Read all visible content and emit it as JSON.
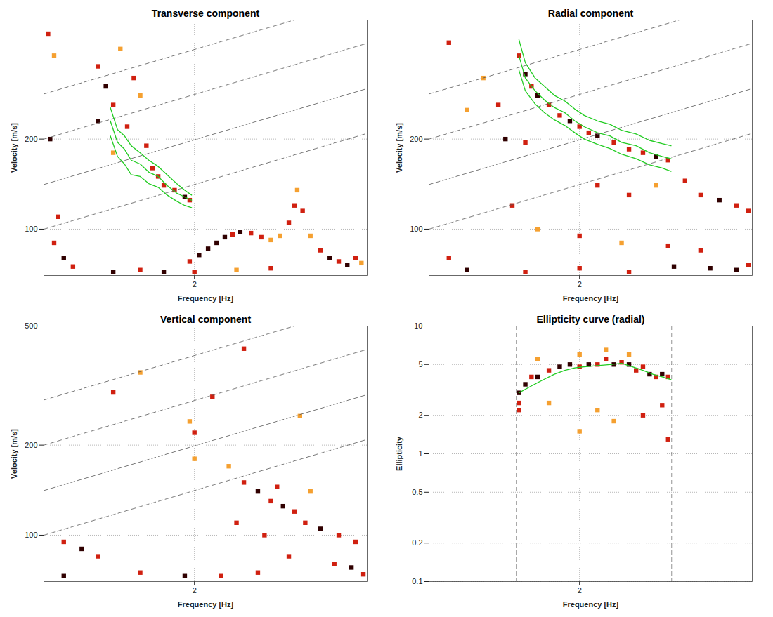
{
  "chart_data": [
    {
      "type": "heatmap",
      "title": "Transverse component",
      "x_label": "Frequency [Hz]",
      "y_label": "Velocity [m/s]",
      "log": true,
      "grid": true,
      "xlim": [
        0.9,
        5
      ],
      "ylim": [
        70,
        500
      ],
      "xticks": [
        2
      ],
      "yticks": [
        100,
        200
      ],
      "cell_levels": [
        1,
        2,
        3,
        4
      ],
      "cell_colors": [
        "#ffe680",
        "#f5a030",
        "#d02010",
        "#300000"
      ],
      "cells": [
        [
          1.95,
          78,
          3
        ],
        [
          2.05,
          82,
          4
        ],
        [
          2.15,
          86,
          4
        ],
        [
          2.25,
          90,
          4
        ],
        [
          2.35,
          94,
          4
        ],
        [
          2.45,
          96,
          3
        ],
        [
          2.55,
          98,
          4
        ],
        [
          2.7,
          97,
          3
        ],
        [
          2.85,
          94,
          3
        ],
        [
          3.0,
          92,
          2
        ],
        [
          3.15,
          95,
          2
        ],
        [
          3.3,
          105,
          3
        ],
        [
          3.4,
          120,
          3
        ],
        [
          3.45,
          135,
          2
        ],
        [
          3.55,
          115,
          3
        ],
        [
          3.7,
          95,
          2
        ],
        [
          3.9,
          85,
          3
        ],
        [
          4.1,
          80,
          4
        ],
        [
          4.3,
          78,
          3
        ],
        [
          4.5,
          76,
          4
        ],
        [
          4.7,
          80,
          3
        ],
        [
          4.85,
          77,
          2
        ],
        [
          1.2,
          350,
          3
        ],
        [
          1.25,
          300,
          4
        ],
        [
          1.3,
          260,
          3
        ],
        [
          1.35,
          400,
          2
        ],
        [
          1.4,
          220,
          3
        ],
        [
          1.45,
          320,
          3
        ],
        [
          1.3,
          180,
          2
        ],
        [
          1.2,
          230,
          4
        ],
        [
          1.5,
          280,
          2
        ],
        [
          1.55,
          190,
          3
        ],
        [
          1.6,
          160,
          3
        ],
        [
          1.65,
          150,
          3
        ],
        [
          1.7,
          140,
          3
        ],
        [
          1.8,
          135,
          3
        ],
        [
          1.9,
          128,
          4
        ],
        [
          1.95,
          125,
          3
        ],
        [
          0.92,
          450,
          3
        ],
        [
          0.95,
          380,
          2
        ],
        [
          0.93,
          200,
          4
        ],
        [
          0.97,
          110,
          3
        ],
        [
          1.0,
          80,
          4
        ],
        [
          1.05,
          75,
          3
        ],
        [
          0.95,
          90,
          3
        ],
        [
          1.3,
          72,
          4
        ],
        [
          1.5,
          73,
          3
        ],
        [
          1.7,
          72,
          4
        ],
        [
          2.0,
          72,
          3
        ],
        [
          2.5,
          73,
          2
        ],
        [
          3.0,
          74,
          3
        ]
      ],
      "dashed_lines": [
        {
          "x": [
            0.9,
            5
          ],
          "y": [
            100,
            209
          ]
        },
        {
          "x": [
            0.9,
            5
          ],
          "y": [
            141,
            295
          ]
        },
        {
          "x": [
            0.9,
            5
          ],
          "y": [
            200,
            418
          ]
        },
        {
          "x": [
            0.9,
            5
          ],
          "y": [
            283,
            590
          ]
        }
      ],
      "line_style": "dashed",
      "series": [
        {
          "color": "#22cc22",
          "x": [
            1.28,
            1.33,
            1.38,
            1.43,
            1.5,
            1.57,
            1.65,
            1.73,
            1.82,
            1.9,
            1.97
          ],
          "values": [
            230,
            195,
            185,
            170,
            165,
            155,
            150,
            140,
            132,
            128,
            125
          ]
        },
        {
          "color": "#22cc22",
          "x": [
            1.28,
            1.33,
            1.38,
            1.43,
            1.5,
            1.57,
            1.65,
            1.73,
            1.82,
            1.9,
            1.97
          ],
          "values": [
            255,
            215,
            205,
            190,
            180,
            170,
            162,
            152,
            142,
            135,
            130
          ]
        },
        {
          "color": "#22cc22",
          "x": [
            1.28,
            1.33,
            1.38,
            1.43,
            1.5,
            1.57,
            1.65,
            1.73,
            1.82,
            1.9,
            1.97
          ],
          "values": [
            205,
            175,
            165,
            152,
            150,
            142,
            138,
            130,
            124,
            120,
            118
          ]
        }
      ]
    },
    {
      "type": "heatmap",
      "title": "Radial component",
      "x_label": "Frequency [Hz]",
      "y_label": "Velocity [m/s]",
      "log": true,
      "grid": true,
      "xlim": [
        0.9,
        5
      ],
      "ylim": [
        70,
        500
      ],
      "xticks": [
        2
      ],
      "yticks": [
        100,
        200
      ],
      "cell_levels": [
        1,
        2,
        3,
        4
      ],
      "cell_colors": [
        "#ffe680",
        "#f5a030",
        "#d02010",
        "#300000"
      ],
      "cells": [
        [
          1.45,
          380,
          3
        ],
        [
          1.5,
          330,
          4
        ],
        [
          1.55,
          300,
          3
        ],
        [
          1.6,
          280,
          4
        ],
        [
          1.7,
          260,
          3
        ],
        [
          1.8,
          240,
          3
        ],
        [
          1.9,
          230,
          4
        ],
        [
          2.0,
          220,
          3
        ],
        [
          2.1,
          210,
          3
        ],
        [
          2.2,
          205,
          4
        ],
        [
          2.4,
          195,
          3
        ],
        [
          2.6,
          185,
          3
        ],
        [
          2.8,
          180,
          3
        ],
        [
          3.0,
          175,
          4
        ],
        [
          3.2,
          170,
          3
        ],
        [
          1.35,
          200,
          4
        ],
        [
          1.5,
          195,
          3
        ],
        [
          1.3,
          260,
          3
        ],
        [
          1.2,
          320,
          2
        ],
        [
          1.4,
          120,
          3
        ],
        [
          1.6,
          100,
          2
        ],
        [
          2.2,
          140,
          3
        ],
        [
          2.6,
          130,
          3
        ],
        [
          3.0,
          140,
          2
        ],
        [
          3.5,
          145,
          3
        ],
        [
          3.8,
          130,
          3
        ],
        [
          4.2,
          125,
          4
        ],
        [
          4.6,
          120,
          3
        ],
        [
          4.9,
          115,
          3
        ],
        [
          2.0,
          95,
          3
        ],
        [
          2.5,
          90,
          2
        ],
        [
          3.2,
          88,
          3
        ],
        [
          1.0,
          80,
          3
        ],
        [
          1.1,
          73,
          4
        ],
        [
          1.5,
          72,
          3
        ],
        [
          2.0,
          74,
          3
        ],
        [
          2.6,
          72,
          3
        ],
        [
          3.3,
          75,
          4
        ],
        [
          4.0,
          74,
          4
        ],
        [
          4.6,
          73,
          4
        ],
        [
          4.9,
          76,
          3
        ],
        [
          3.8,
          85,
          3
        ],
        [
          1.0,
          420,
          3
        ],
        [
          1.1,
          250,
          2
        ]
      ],
      "dashed_lines": [
        {
          "x": [
            0.9,
            5
          ],
          "y": [
            100,
            209
          ]
        },
        {
          "x": [
            0.9,
            5
          ],
          "y": [
            141,
            295
          ]
        },
        {
          "x": [
            0.9,
            5
          ],
          "y": [
            200,
            418
          ]
        },
        {
          "x": [
            0.9,
            5
          ],
          "y": [
            283,
            590
          ]
        }
      ],
      "line_style": "dashed",
      "series": [
        {
          "color": "#22cc22",
          "x": [
            1.45,
            1.5,
            1.58,
            1.66,
            1.75,
            1.85,
            1.95,
            2.05,
            2.2,
            2.35,
            2.5,
            2.7,
            2.9,
            3.1,
            3.25
          ],
          "values": [
            380,
            320,
            290,
            270,
            255,
            245,
            230,
            220,
            210,
            205,
            195,
            190,
            180,
            175,
            172
          ]
        },
        {
          "color": "#22cc22",
          "x": [
            1.45,
            1.5,
            1.58,
            1.66,
            1.75,
            1.85,
            1.95,
            2.05,
            2.2,
            2.35,
            2.5,
            2.7,
            2.9,
            3.1,
            3.25
          ],
          "values": [
            430,
            360,
            320,
            300,
            280,
            268,
            252,
            240,
            230,
            224,
            214,
            208,
            198,
            193,
            190
          ]
        },
        {
          "color": "#22cc22",
          "x": [
            1.45,
            1.5,
            1.58,
            1.66,
            1.75,
            1.85,
            1.95,
            2.05,
            2.2,
            2.35,
            2.5,
            2.7,
            2.9,
            3.1,
            3.25
          ],
          "values": [
            340,
            290,
            262,
            245,
            232,
            222,
            210,
            200,
            192,
            186,
            178,
            172,
            164,
            160,
            156
          ]
        }
      ]
    },
    {
      "type": "heatmap",
      "title": "Vertical component",
      "x_label": "Frequency [Hz]",
      "y_label": "Velocity [m/s]",
      "log": true,
      "grid": true,
      "xlim": [
        0.9,
        5
      ],
      "ylim": [
        70,
        500
      ],
      "xticks": [
        2
      ],
      "yticks": [
        100,
        200,
        500
      ],
      "cell_levels": [
        1,
        2,
        3,
        4
      ],
      "cell_colors": [
        "#ffe680",
        "#f5a030",
        "#d02010",
        "#300000"
      ],
      "cells": [
        [
          2.6,
          150,
          3
        ],
        [
          2.8,
          140,
          4
        ],
        [
          3.0,
          130,
          3
        ],
        [
          3.2,
          125,
          4
        ],
        [
          3.4,
          120,
          3
        ],
        [
          3.1,
          145,
          3
        ],
        [
          3.6,
          110,
          3
        ],
        [
          3.9,
          105,
          4
        ],
        [
          4.3,
          100,
          3
        ],
        [
          4.7,
          95,
          3
        ],
        [
          2.0,
          220,
          3
        ],
        [
          2.0,
          180,
          2
        ],
        [
          1.95,
          240,
          2
        ],
        [
          2.4,
          170,
          2
        ],
        [
          2.2,
          290,
          3
        ],
        [
          1.3,
          300,
          3
        ],
        [
          1.5,
          350,
          2
        ],
        [
          2.6,
          420,
          3
        ],
        [
          3.5,
          250,
          2
        ],
        [
          1.0,
          95,
          3
        ],
        [
          1.1,
          90,
          4
        ],
        [
          1.2,
          85,
          3
        ],
        [
          1.5,
          75,
          3
        ],
        [
          1.0,
          73,
          4
        ],
        [
          1.9,
          73,
          4
        ],
        [
          2.3,
          73,
          3
        ],
        [
          2.8,
          75,
          3
        ],
        [
          3.3,
          85,
          3
        ],
        [
          4.2,
          80,
          3
        ],
        [
          4.6,
          78,
          4
        ],
        [
          4.9,
          74,
          3
        ],
        [
          2.5,
          110,
          3
        ],
        [
          2.9,
          100,
          3
        ],
        [
          3.7,
          140,
          2
        ]
      ],
      "dashed_lines": [
        {
          "x": [
            0.9,
            5
          ],
          "y": [
            100,
            209
          ]
        },
        {
          "x": [
            0.9,
            5
          ],
          "y": [
            141,
            295
          ]
        },
        {
          "x": [
            0.9,
            5
          ],
          "y": [
            200,
            418
          ]
        },
        {
          "x": [
            0.9,
            5
          ],
          "y": [
            283,
            590
          ]
        }
      ],
      "line_style": "dashed",
      "series": []
    },
    {
      "type": "heatmap",
      "title": "Ellipticity curve (radial)",
      "x_label": "Frequency [Hz]",
      "y_label": "Ellipticity",
      "log": true,
      "grid": true,
      "xlim": [
        0.9,
        5
      ],
      "ylim": [
        0.1,
        10
      ],
      "xticks": [
        2
      ],
      "yticks": [
        0.1,
        0.2,
        0.5,
        1,
        2,
        5,
        10
      ],
      "cell_levels": [
        1,
        2,
        3,
        4
      ],
      "cell_colors": [
        "#ffe680",
        "#f5a030",
        "#d02010",
        "#300000"
      ],
      "cells": [
        [
          1.45,
          3,
          4
        ],
        [
          1.45,
          2.5,
          3
        ],
        [
          1.45,
          2.2,
          3
        ],
        [
          1.5,
          3.5,
          4
        ],
        [
          1.55,
          4,
          3
        ],
        [
          1.6,
          4,
          4
        ],
        [
          1.7,
          4.5,
          3
        ],
        [
          1.8,
          4.8,
          4
        ],
        [
          1.9,
          5,
          4
        ],
        [
          2.0,
          4.8,
          3
        ],
        [
          2.1,
          5,
          4
        ],
        [
          2.2,
          5,
          3
        ],
        [
          2.3,
          5.5,
          3
        ],
        [
          2.4,
          5,
          4
        ],
        [
          2.5,
          5.2,
          3
        ],
        [
          2.6,
          5,
          4
        ],
        [
          2.7,
          4.5,
          3
        ],
        [
          2.8,
          4.8,
          3
        ],
        [
          2.9,
          4.2,
          4
        ],
        [
          3.0,
          4,
          3
        ],
        [
          3.1,
          4.2,
          4
        ],
        [
          3.2,
          4,
          3
        ],
        [
          1.6,
          5.5,
          2
        ],
        [
          2.0,
          6,
          2
        ],
        [
          2.3,
          6.5,
          2
        ],
        [
          2.6,
          6,
          2
        ],
        [
          2.0,
          1.5,
          2
        ],
        [
          2.4,
          1.8,
          2
        ],
        [
          2.8,
          2,
          3
        ],
        [
          3.1,
          2.4,
          3
        ],
        [
          3.2,
          1.3,
          3
        ],
        [
          1.7,
          2.5,
          2
        ],
        [
          2.2,
          2.2,
          2
        ]
      ],
      "band_limits": [
        1.43,
        3.26
      ],
      "line_style": "dashed",
      "series": [
        {
          "color": "#22cc22",
          "x": [
            1.45,
            1.55,
            1.65,
            1.75,
            1.85,
            1.95,
            2.05,
            2.2,
            2.35,
            2.5,
            2.65,
            2.8,
            2.95,
            3.1,
            3.25
          ],
          "values": [
            3,
            3.4,
            3.8,
            4.2,
            4.5,
            4.7,
            4.8,
            4.9,
            5,
            5.1,
            4.8,
            4.5,
            4.2,
            4,
            3.8
          ]
        }
      ]
    }
  ]
}
